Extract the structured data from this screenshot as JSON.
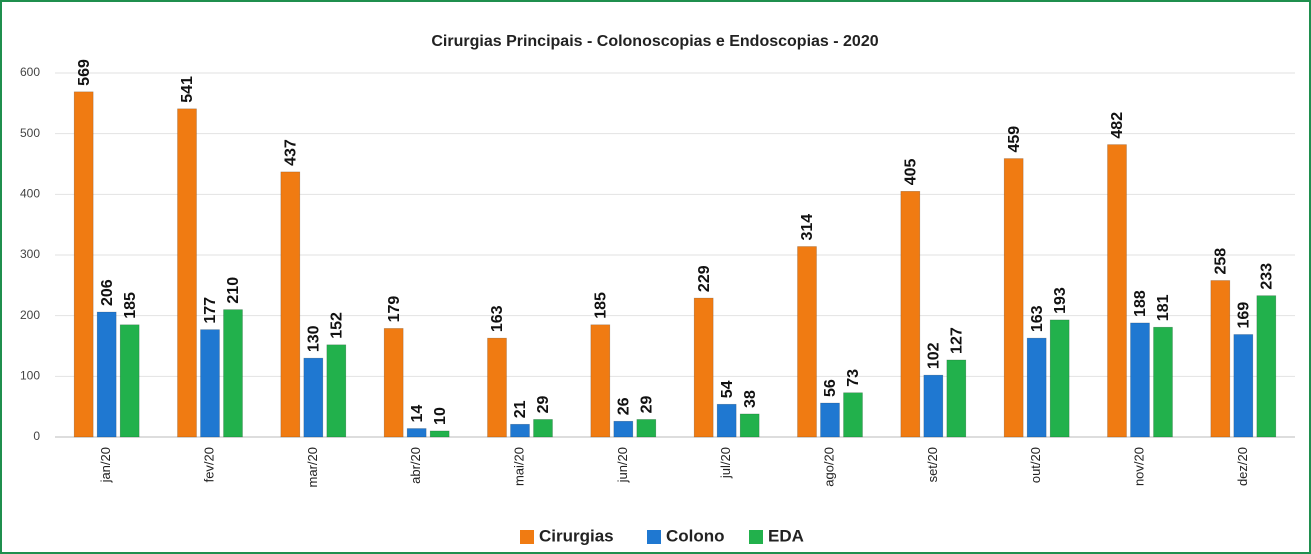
{
  "chart_data": {
    "type": "bar",
    "title": "Cirurgias Principais - Colonoscopias e Endoscopias - 2020",
    "categories": [
      "jan/20",
      "fev/20",
      "mar/20",
      "abr/20",
      "mai/20",
      "jun/20",
      "jul/20",
      "ago/20",
      "set/20",
      "out/20",
      "nov/20",
      "dez/20"
    ],
    "series": [
      {
        "name": "Cirurgias",
        "color": "#f07b12",
        "values": [
          569,
          541,
          437,
          179,
          163,
          185,
          229,
          314,
          405,
          459,
          482,
          258
        ]
      },
      {
        "name": "Colono",
        "color": "#1f78d1",
        "values": [
          206,
          177,
          130,
          14,
          21,
          26,
          54,
          56,
          102,
          163,
          188,
          169
        ]
      },
      {
        "name": "EDA",
        "color": "#22b14c",
        "values": [
          185,
          210,
          152,
          10,
          29,
          29,
          38,
          73,
          127,
          193,
          181,
          233
        ]
      }
    ],
    "ylim": [
      0,
      600
    ],
    "yticks": [
      0,
      100,
      200,
      300,
      400,
      500,
      600
    ],
    "grid": true,
    "legend": "bottom"
  }
}
